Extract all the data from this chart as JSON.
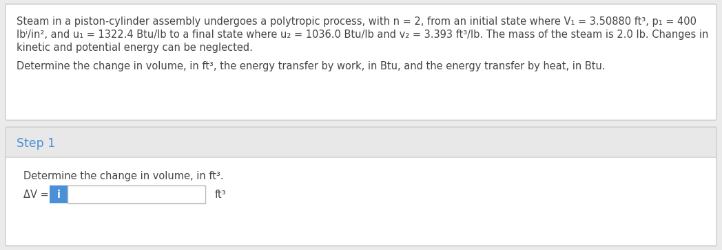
{
  "bg_color": "#ebebeb",
  "top_box_bg": "#ffffff",
  "top_box_border": "#cccccc",
  "step_header_bg": "#e8e8e8",
  "step_header_border": "#cccccc",
  "answer_box_bg": "#ffffff",
  "answer_box_border": "#cccccc",
  "step_color": "#4a90d9",
  "input_box_color": "#4a90d9",
  "text_color": "#444444",
  "paragraph1": "Steam in a piston-cylinder assembly undergoes a polytropic process, with n = 2, from an initial state where V₁ = 3.50880 ft³, p₁ = 400",
  "paragraph1b": "lbⁱ/in², and u₁ = 1322.4 Btu/lb to a final state where u₂ = 1036.0 Btu/lb and v₂ = 3.393 ft³/lb. The mass of the steam is 2.0 lb. Changes in",
  "paragraph1c": "kinetic and potential energy can be neglected.",
  "paragraph2": "Determine the change in volume, in ft³, the energy transfer by work, in Btu, and the energy transfer by heat, in Btu.",
  "step_label": "Step 1",
  "step_subtext": "Determine the change in volume, in ft³.",
  "delta_v_label": "ΔV = ",
  "input_letter": "i",
  "unit_label": "ft³",
  "font_size_body": 10.5,
  "font_size_step": 12.5
}
